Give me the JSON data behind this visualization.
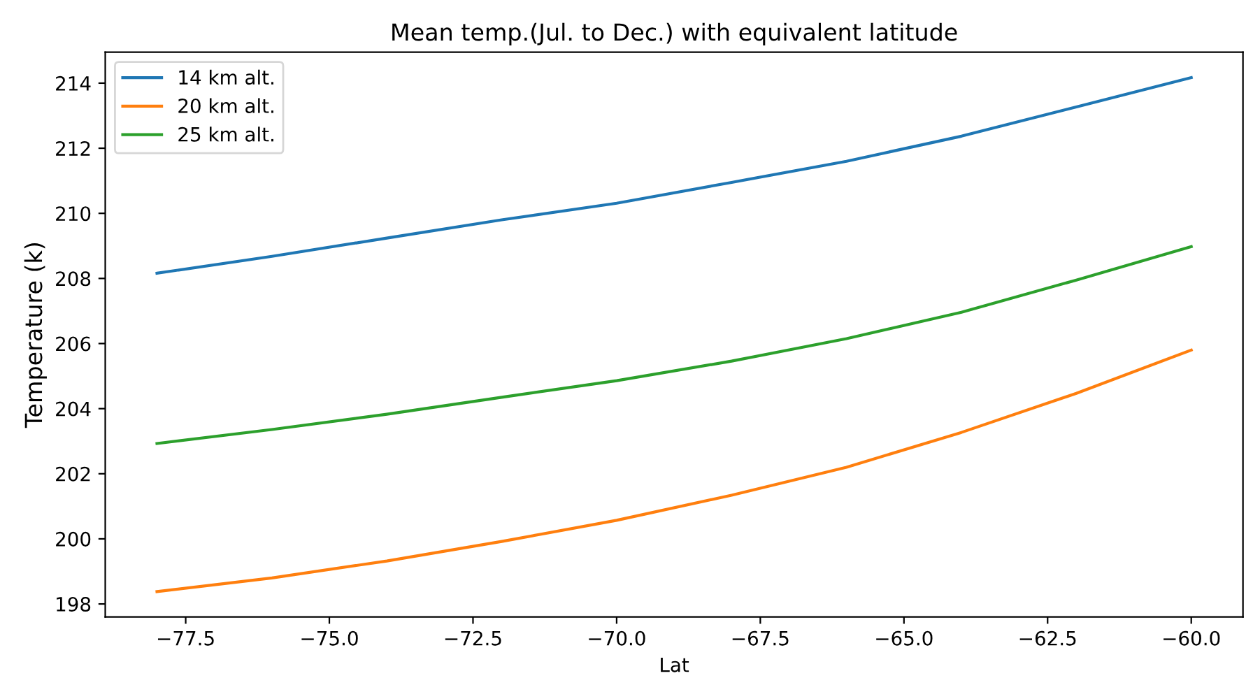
{
  "chart_data": {
    "type": "line",
    "title": "Mean temp.(Jul. to Dec.) with equivalent latitude",
    "xlabel": "Lat",
    "ylabel": "Temperature (k)",
    "x": [
      -78,
      -76,
      -74,
      -72,
      -70,
      -68,
      -66,
      -64,
      -62,
      -60
    ],
    "series": [
      {
        "name": "14 km alt.",
        "color": "#1f77b4",
        "values": [
          208.16,
          208.68,
          209.24,
          209.8,
          210.31,
          210.95,
          211.6,
          212.37,
          213.27,
          214.17
        ]
      },
      {
        "name": "20 km alt.",
        "color": "#ff7f0e",
        "values": [
          198.38,
          198.8,
          199.32,
          199.92,
          200.57,
          201.34,
          202.2,
          203.27,
          204.47,
          205.8
        ]
      },
      {
        "name": "25 km alt.",
        "color": "#2ca02c",
        "values": [
          202.93,
          203.36,
          203.83,
          204.35,
          204.86,
          205.46,
          206.15,
          206.96,
          207.95,
          208.98
        ]
      }
    ],
    "xlim": [
      -78.9,
      -59.1
    ],
    "ylim": [
      197.6,
      214.95
    ],
    "xticks": [
      {
        "value": -77.5,
        "label": "−77.5"
      },
      {
        "value": -75.0,
        "label": "−75.0"
      },
      {
        "value": -72.5,
        "label": "−72.5"
      },
      {
        "value": -70.0,
        "label": "−70.0"
      },
      {
        "value": -67.5,
        "label": "−67.5"
      },
      {
        "value": -65.0,
        "label": "−65.0"
      },
      {
        "value": -62.5,
        "label": "−62.5"
      },
      {
        "value": -60.0,
        "label": "−60.0"
      }
    ],
    "yticks": [
      198,
      200,
      202,
      204,
      206,
      208,
      210,
      212,
      214
    ],
    "grid": false,
    "legend": "top left",
    "marker": "none",
    "line_style": "solid"
  }
}
